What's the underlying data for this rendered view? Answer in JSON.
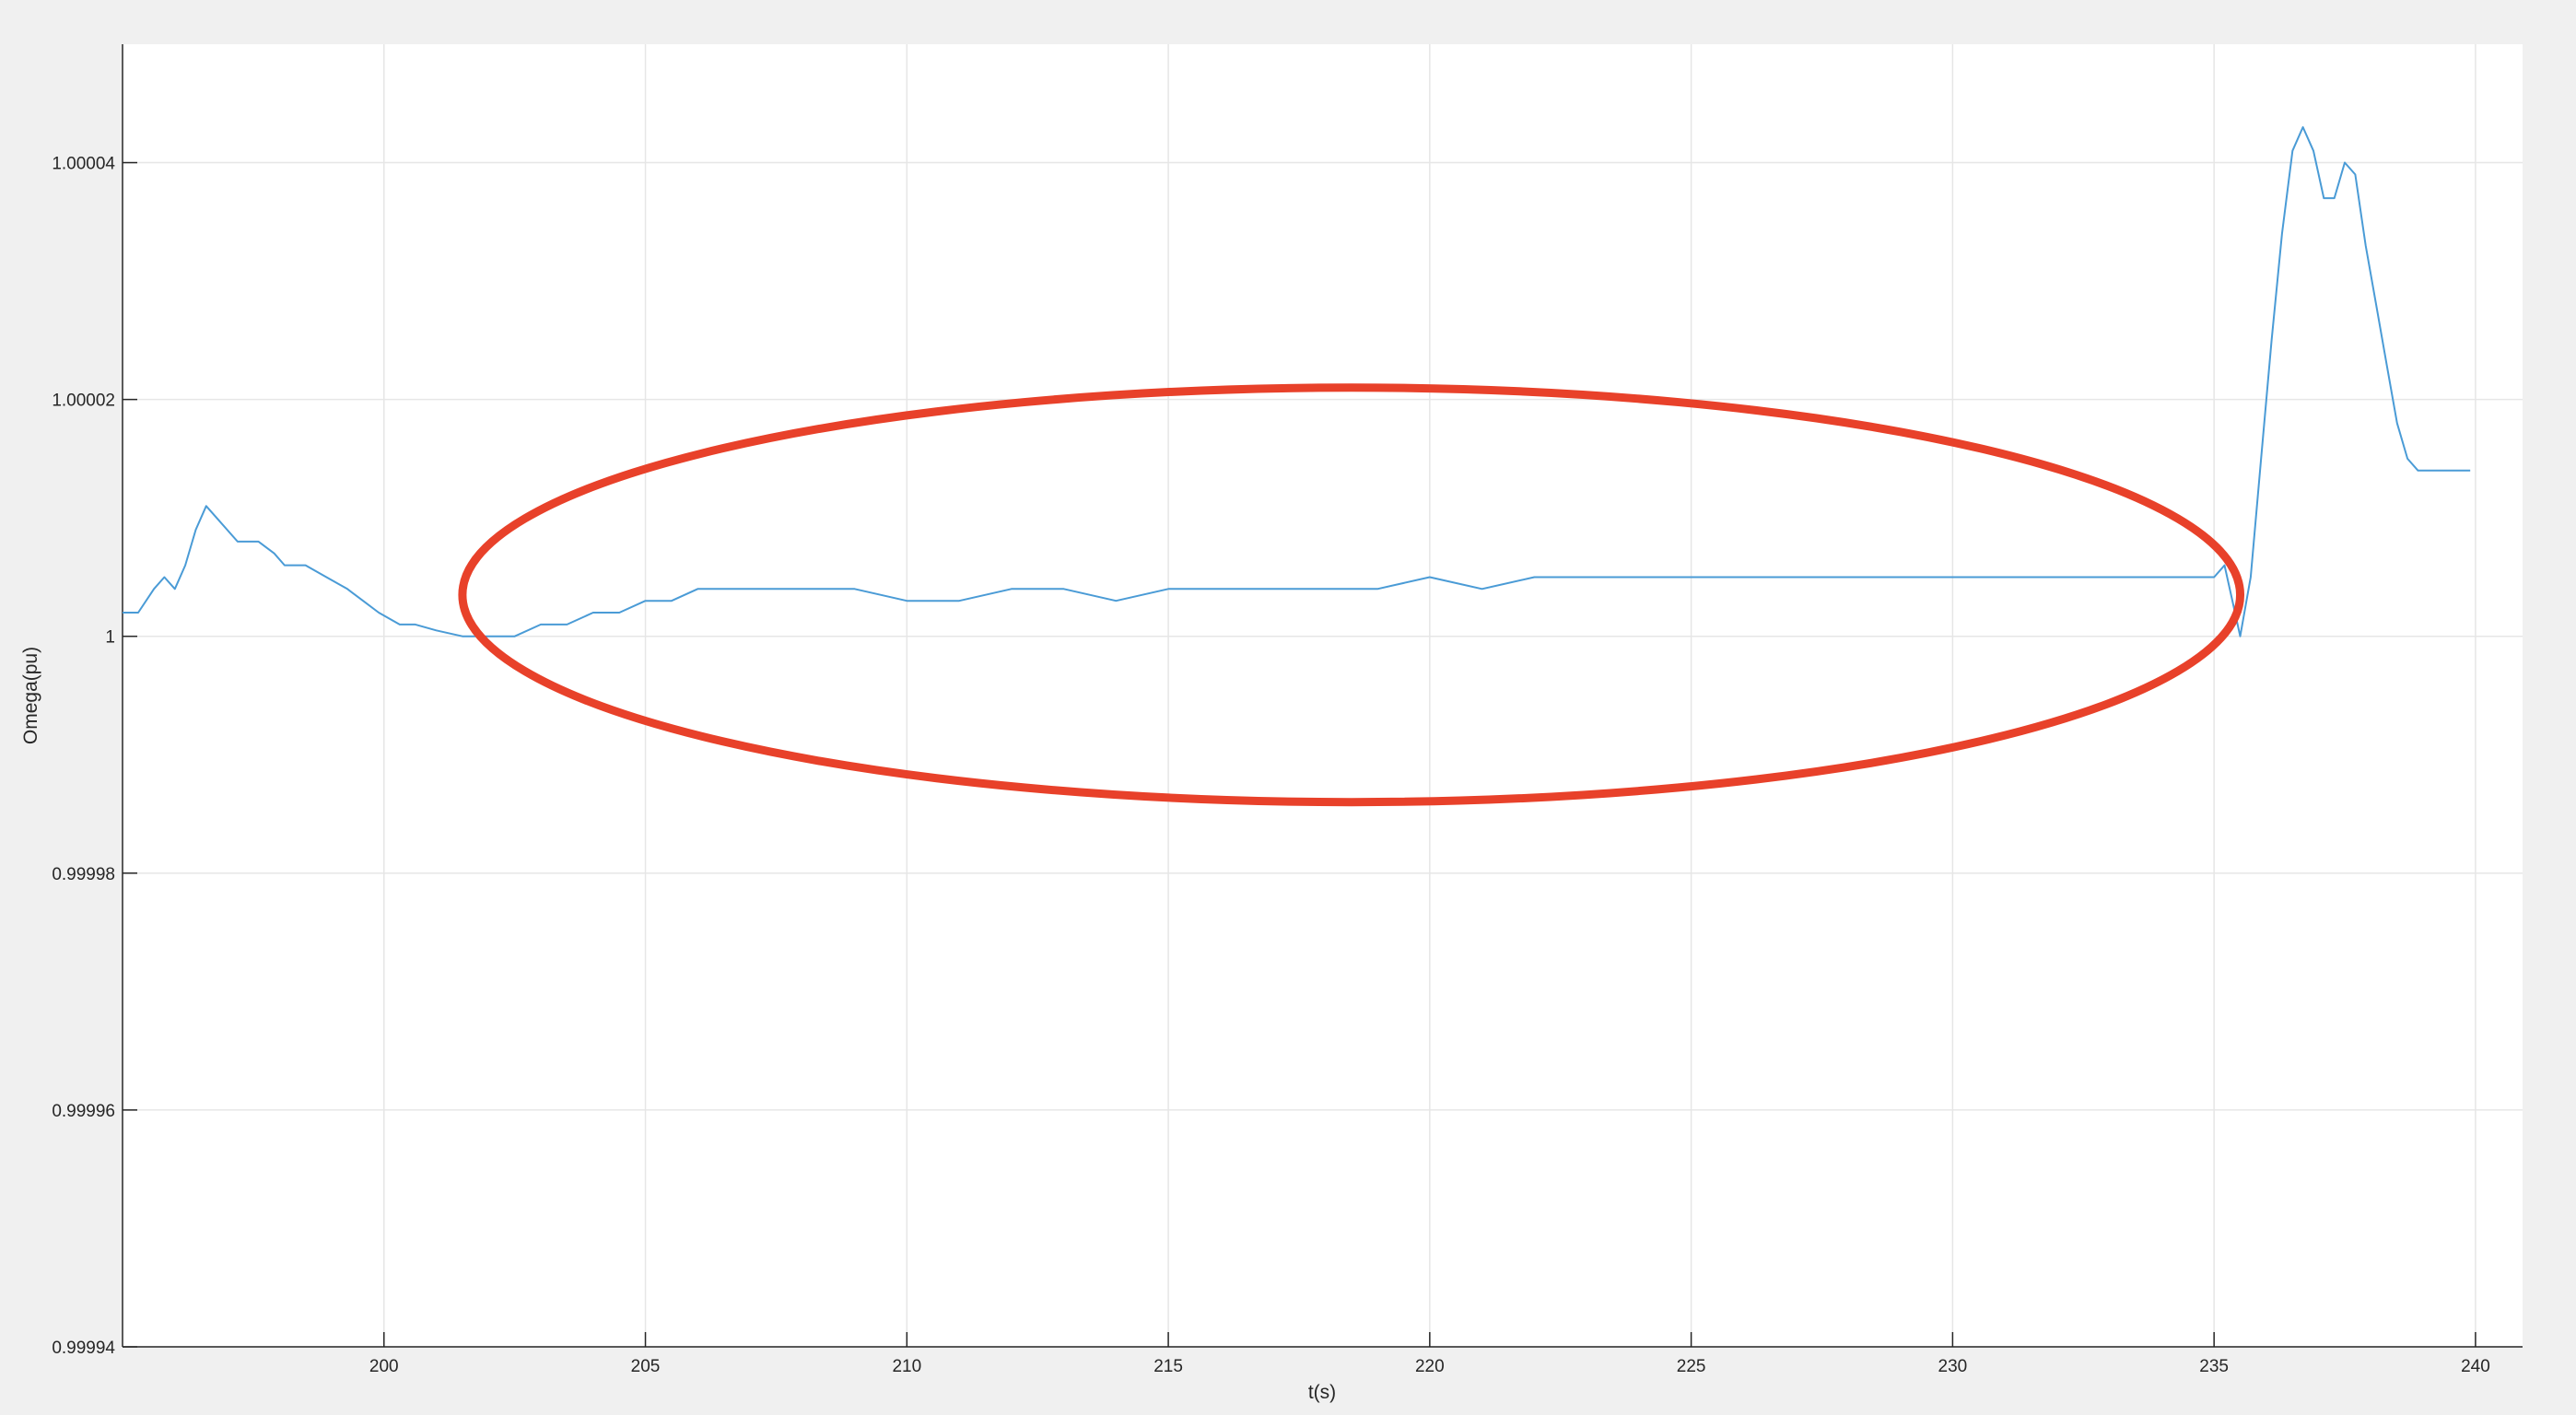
{
  "chart_data": {
    "type": "line",
    "title": "",
    "xlabel": "t(s)",
    "ylabel": "Omega(pu)",
    "xlim": [
      195,
      240.9
    ],
    "ylim": [
      0.99994,
      1.00005
    ],
    "grid": true,
    "xticks": [
      200,
      205,
      210,
      215,
      220,
      225,
      230,
      235,
      240
    ],
    "xtick_labels": [
      "200",
      "205",
      "210",
      "215",
      "220",
      "225",
      "230",
      "235",
      "240"
    ],
    "yticks": [
      0.99994,
      0.99996,
      0.99998,
      1,
      1.00002,
      1.00004
    ],
    "ytick_labels": [
      "0.99994",
      "0.99996",
      "0.99998",
      "1",
      "1.00002",
      "1.00004"
    ],
    "series": [
      {
        "color": "#4a9bd6",
        "x": [
          195.0,
          195.3,
          195.6,
          195.8,
          196.0,
          196.2,
          196.4,
          196.6,
          196.8,
          197.0,
          197.2,
          197.6,
          197.9,
          198.1,
          198.5,
          198.9,
          199.3,
          199.6,
          199.9,
          200.3,
          200.6,
          201.0,
          201.5,
          202.0,
          202.5,
          203.0,
          203.5,
          204.0,
          204.5,
          205.0,
          205.5,
          206.0,
          207.0,
          208.0,
          209.0,
          210.0,
          211.0,
          212.0,
          213.0,
          214.0,
          215.0,
          216.0,
          217.0,
          218.0,
          219.0,
          220.0,
          221.0,
          222.0,
          223.0,
          224.0,
          225.0,
          226.0,
          227.0,
          228.0,
          229.0,
          230.0,
          231.0,
          232.0,
          233.0,
          234.0,
          235.0,
          235.2,
          235.4,
          235.5,
          235.7,
          235.9,
          236.1,
          236.3,
          236.5,
          236.7,
          236.9,
          237.1,
          237.3,
          237.5,
          237.7,
          237.9,
          238.1,
          238.3,
          238.5,
          238.7,
          238.9,
          239.1,
          239.3,
          239.5,
          239.7,
          239.9
        ],
        "y": [
          1.000002,
          1.000002,
          1.000004,
          1.000005,
          1.000004,
          1.000006,
          1.000009,
          1.000011,
          1.00001,
          1.000009,
          1.000008,
          1.000008,
          1.000007,
          1.000006,
          1.000006,
          1.000005,
          1.000004,
          1.000003,
          1.000002,
          1.000001,
          1.000001,
          1.0000005,
          1.0,
          1.0,
          1.0,
          1.000001,
          1.000001,
          1.000002,
          1.000002,
          1.000003,
          1.000003,
          1.000004,
          1.000004,
          1.000004,
          1.000004,
          1.000003,
          1.000003,
          1.000004,
          1.000004,
          1.000003,
          1.000004,
          1.000004,
          1.000004,
          1.000004,
          1.000004,
          1.000005,
          1.000004,
          1.000005,
          1.000005,
          1.000005,
          1.000005,
          1.000005,
          1.000005,
          1.000005,
          1.000005,
          1.000005,
          1.000005,
          1.000005,
          1.000005,
          1.000005,
          1.000005,
          1.000006,
          1.000002,
          1.0,
          1.000005,
          1.000015,
          1.000025,
          1.000034,
          1.000041,
          1.000043,
          1.000041,
          1.000037,
          1.000037,
          1.00004,
          1.000039,
          1.000033,
          1.000028,
          1.000023,
          1.000018,
          1.000015,
          1.000014,
          1.000014,
          1.000014,
          1.000014,
          1.000014,
          1.000014
        ]
      }
    ]
  },
  "annotation": {
    "shape": "ellipse",
    "color": "#e8412a",
    "center_data": [
      218.5,
      1.0000035
    ],
    "radius_data": [
      17.0,
      1.75e-05
    ]
  }
}
